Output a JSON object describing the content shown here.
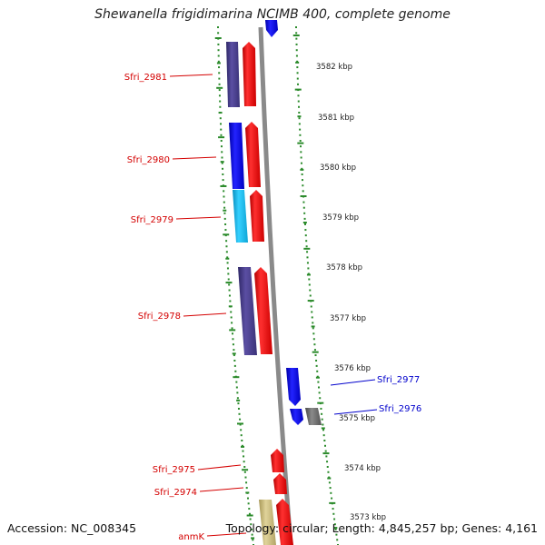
{
  "title": "Shewanella frigidimarina NCIMB 400, complete genome",
  "footer": {
    "accession": "Accession: NC_008345",
    "stats": "Topology: circular; Length: 4,845,257 bp; Genes: 4,161"
  },
  "colors": {
    "backbone": "#8a8a8a",
    "dots": "#2a8a2a",
    "label_red": "#d40000",
    "label_blue": "#0000cc",
    "gene_red": "#ff1a1a",
    "gene_navy": "#4a3f8c",
    "gene_blue": "#1010ee",
    "gene_cyan": "#18bcec",
    "gene_gray": "#6e6e6e",
    "gene_khaki": "#c8b878"
  },
  "scale_labels": [
    "3582 kbp",
    "3581 kbp",
    "3580 kbp",
    "3579 kbp",
    "3578 kbp",
    "3577 kbp",
    "3576 kbp",
    "3575 kbp",
    "3574 kbp",
    "3573 kbp"
  ],
  "gene_labels": [
    "Sfri_2981",
    "Sfri_2980",
    "Sfri_2979",
    "Sfri_2978",
    "Sfri_2977",
    "Sfri_2976",
    "Sfri_2975",
    "Sfri_2974",
    "anmK"
  ]
}
